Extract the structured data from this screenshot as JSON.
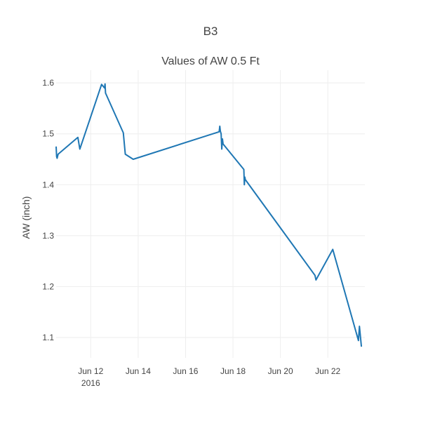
{
  "chart_data": {
    "type": "line",
    "title": "B3",
    "subtitle": "Values of AW  0.5 Ft",
    "xlabel": "",
    "ylabel": "AW (inch)",
    "xlim": [
      "2016-06-10T13:00",
      "2016-06-23T13:30"
    ],
    "ylim": [
      1.06,
      1.625
    ],
    "grid": true,
    "x_ticks": [
      {
        "date": "2016-06-12",
        "label": "Jun 12",
        "sublabel": "2016"
      },
      {
        "date": "2016-06-14",
        "label": "Jun 14"
      },
      {
        "date": "2016-06-16",
        "label": "Jun 16"
      },
      {
        "date": "2016-06-18",
        "label": "Jun 18"
      },
      {
        "date": "2016-06-20",
        "label": "Jun 20"
      },
      {
        "date": "2016-06-22",
        "label": "Jun 22"
      }
    ],
    "y_ticks": [
      1.1,
      1.2,
      1.3,
      1.4,
      1.5,
      1.6
    ],
    "series": [
      {
        "color": "#1f77b4",
        "x": [
          "2016-06-10T13:00",
          "2016-06-10T13:30",
          "2016-06-10T14:00",
          "2016-06-10T15:00",
          "2016-06-11T11:00",
          "2016-06-11T13:00",
          "2016-06-12T11:00",
          "2016-06-12T14:00",
          "2016-06-12T14:30",
          "2016-06-12T15:00",
          "2016-06-13T09:00",
          "2016-06-13T11:00",
          "2016-06-13T19:00",
          "2016-06-17T10:00",
          "2016-06-17T10:40",
          "2016-06-17T11:15",
          "2016-06-17T12:00",
          "2016-06-17T12:40",
          "2016-06-17T13:20",
          "2016-06-17T14:00",
          "2016-06-18T11:00",
          "2016-06-18T11:30",
          "2016-06-18T12:00",
          "2016-06-18T12:30",
          "2016-06-21T11:00",
          "2016-06-21T12:00",
          "2016-06-22T05:00",
          "2016-06-23T07:00",
          "2016-06-23T08:00",
          "2016-06-23T10:00"
        ],
        "y": [
          1.475,
          1.455,
          1.452,
          1.46,
          1.493,
          1.47,
          1.597,
          1.59,
          1.598,
          1.58,
          1.502,
          1.46,
          1.45,
          1.504,
          1.515,
          1.505,
          1.5,
          1.47,
          1.49,
          1.48,
          1.43,
          1.4,
          1.415,
          1.41,
          1.222,
          1.213,
          1.273,
          1.094,
          1.122,
          1.082
        ]
      }
    ]
  }
}
